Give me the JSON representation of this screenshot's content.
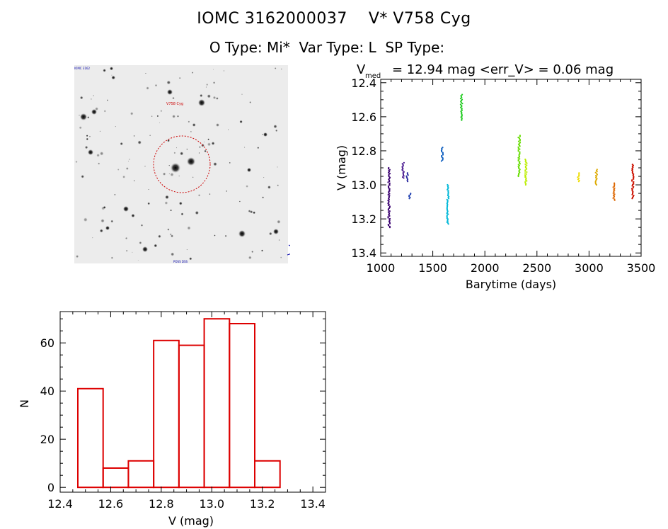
{
  "header": {
    "title": "IOMC 3162000037    V* V758 Cyg",
    "subtitle": "O Type: Mi*  Var Type: L  SP Type:"
  },
  "finder": {
    "target_label": "V758 Cyg",
    "top_left_label": "IOMC 3162",
    "bottom_label": "POSS DSS",
    "circle_color": "#cc0000"
  },
  "chart_data": [
    {
      "type": "scatter",
      "title_main": "= 12.94 mag <err_V> = 0.06 mag",
      "title_v": "V",
      "title_sub": "med",
      "xlabel": "Barytime (days)",
      "ylabel": "V (mag)",
      "xlim": [
        1000,
        3500
      ],
      "ylim": [
        13.42,
        12.38
      ],
      "y_inverted": true,
      "xticks": [
        1000,
        1500,
        2000,
        2500,
        3000,
        3500
      ],
      "yticks": [
        12.4,
        12.6,
        12.8,
        13.0,
        13.2,
        13.4
      ],
      "ytick_labels": [
        "12.4",
        "12.6",
        "12.8",
        "13.0",
        "13.2",
        "13.4"
      ],
      "groups": [
        {
          "x": 1080,
          "ymin": 12.9,
          "ymax": 13.25,
          "color": "#3a0070"
        },
        {
          "x": 1215,
          "ymin": 12.87,
          "ymax": 12.96,
          "color": "#4a1a90"
        },
        {
          "x": 1255,
          "ymin": 12.93,
          "ymax": 12.98,
          "color": "#2a2aa0"
        },
        {
          "x": 1280,
          "ymin": 13.05,
          "ymax": 13.08,
          "color": "#2040b0"
        },
        {
          "x": 1590,
          "ymin": 12.78,
          "ymax": 12.86,
          "color": "#1060c0"
        },
        {
          "x": 1645,
          "ymin": 13.0,
          "ymax": 13.23,
          "color": "#00b8d8"
        },
        {
          "x": 1775,
          "ymin": 12.47,
          "ymax": 12.62,
          "color": "#22cc22"
        },
        {
          "x": 2330,
          "ymin": 12.71,
          "ymax": 12.95,
          "color": "#66dd00"
        },
        {
          "x": 2395,
          "ymin": 12.85,
          "ymax": 13.0,
          "color": "#bbee00"
        },
        {
          "x": 2900,
          "ymin": 12.93,
          "ymax": 12.98,
          "color": "#eedd00"
        },
        {
          "x": 3070,
          "ymin": 12.91,
          "ymax": 13.0,
          "color": "#ddaa00"
        },
        {
          "x": 3240,
          "ymin": 12.99,
          "ymax": 13.09,
          "color": "#dd6600"
        },
        {
          "x": 3420,
          "ymin": 12.88,
          "ymax": 13.08,
          "color": "#cc1100"
        }
      ]
    },
    {
      "type": "bar",
      "subtype": "histogram",
      "xlabel": "V (mag)",
      "ylabel": "N",
      "xlim": [
        12.4,
        13.45
      ],
      "ylim": [
        -2,
        73
      ],
      "xticks": [
        12.4,
        12.6,
        12.8,
        13.0,
        13.2,
        13.4
      ],
      "xtick_labels": [
        "12.4",
        "12.6",
        "12.8",
        "13.0",
        "13.2",
        "13.4"
      ],
      "yticks": [
        0,
        20,
        40,
        60
      ],
      "ytick_labels": [
        "0",
        "20",
        "40",
        "60"
      ],
      "bin_edges": [
        12.47,
        12.57,
        12.67,
        12.77,
        12.87,
        12.97,
        13.07,
        13.17,
        13.27
      ],
      "counts": [
        41,
        8,
        11,
        61,
        59,
        70,
        68,
        11
      ],
      "color": "#dd0000"
    }
  ]
}
